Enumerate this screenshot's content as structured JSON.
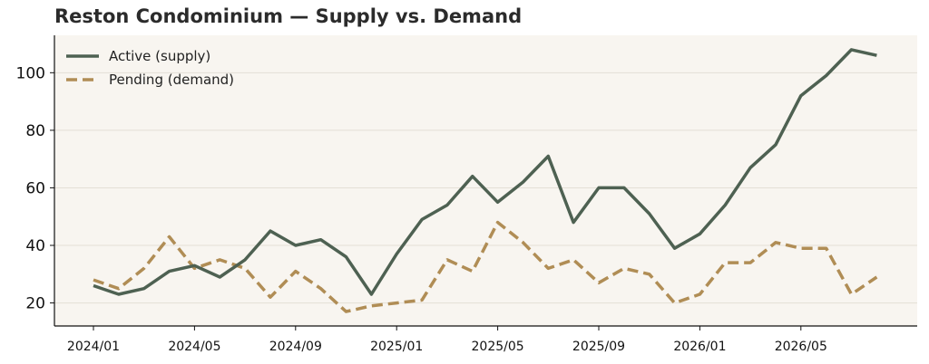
{
  "title": "Reston Condominium — Supply vs. Demand",
  "colors": {
    "plot_background": "#f8f5f0",
    "active": "#4e6152",
    "pending": "#b08d55",
    "grid": "#e4dfd6",
    "axis": "#111111"
  },
  "chart_data": {
    "type": "line",
    "title": "Reston Condominium — Supply vs. Demand",
    "xlabel": "",
    "ylabel": "",
    "x": [
      "2024/01",
      "2024/02",
      "2024/03",
      "2024/04",
      "2024/05",
      "2024/06",
      "2024/07",
      "2024/08",
      "2024/09",
      "2024/10",
      "2024/11",
      "2024/12",
      "2025/01",
      "2025/02",
      "2025/03",
      "2025/04",
      "2025/05",
      "2025/06",
      "2025/07",
      "2025/08",
      "2025/09",
      "2025/10",
      "2025/11",
      "2025/12",
      "2026/01",
      "2026/02",
      "2026/03",
      "2026/04",
      "2026/05",
      "2026/06",
      "2026/07",
      "2026/08"
    ],
    "xticks": [
      "2024/01",
      "2024/05",
      "2024/09",
      "2025/01",
      "2025/05",
      "2025/09",
      "2026/01",
      "2026/05"
    ],
    "ylim": [
      12,
      113
    ],
    "yticks": [
      20,
      40,
      60,
      80,
      100
    ],
    "grid": "horizontal",
    "legend_position": "top-left",
    "series": [
      {
        "name": "Active (supply)",
        "style": "solid",
        "values": [
          26,
          23,
          25,
          31,
          33,
          29,
          35,
          45,
          40,
          42,
          36,
          23,
          37,
          49,
          54,
          64,
          55,
          62,
          71,
          48,
          60,
          60,
          51,
          39,
          44,
          54,
          67,
          75,
          92,
          99,
          108,
          106
        ]
      },
      {
        "name": "Pending (demand)",
        "style": "dashed",
        "values": [
          28,
          25,
          32,
          43,
          32,
          35,
          32,
          22,
          31,
          25,
          17,
          19,
          20,
          21,
          35,
          31,
          48,
          41,
          32,
          35,
          27,
          32,
          30,
          20,
          23,
          34,
          34,
          41,
          39,
          39,
          23,
          29
        ]
      }
    ]
  }
}
